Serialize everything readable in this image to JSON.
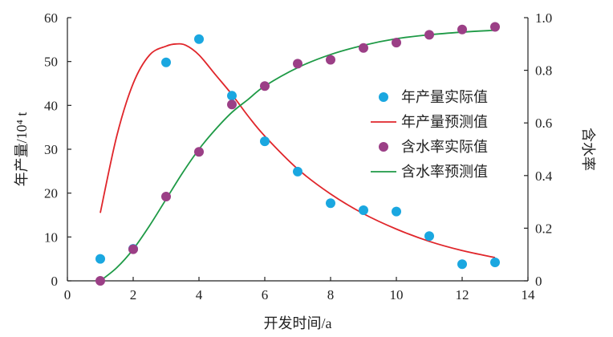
{
  "chart_data": {
    "type": "scatter",
    "xlabel": "开发时间/a",
    "ylabel": "年产量/10⁴ t",
    "y2label": "含水率",
    "xlim": [
      0,
      14
    ],
    "ylim": [
      0,
      60
    ],
    "y2lim": [
      0,
      1.0
    ],
    "xticks": [
      "0",
      "2",
      "4",
      "6",
      "8",
      "10",
      "12",
      "14"
    ],
    "yticks": [
      "0",
      "10",
      "20",
      "30",
      "40",
      "50",
      "60"
    ],
    "y2ticks": [
      "0",
      "0.2",
      "0.4",
      "0.6",
      "0.8",
      "1.0"
    ],
    "grid": false,
    "legend_position": "right",
    "colors": {
      "production_actual": "#1aa7e0",
      "production_pred": "#e0262b",
      "watercut_actual": "#9b3f86",
      "watercut_pred": "#1e9a46"
    },
    "series": [
      {
        "name": "年产量实际值",
        "kind": "points",
        "axis": "left",
        "x": [
          1,
          2,
          3,
          4,
          5,
          6,
          7,
          8,
          9,
          10,
          11,
          12,
          13
        ],
        "y": [
          5.0,
          7.3,
          49.8,
          55.1,
          42.2,
          31.8,
          24.9,
          17.7,
          16.1,
          15.8,
          10.2,
          3.8,
          4.2
        ]
      },
      {
        "name": "年产量预测值",
        "kind": "line",
        "axis": "left",
        "x": [
          1,
          1.5,
          2,
          2.5,
          3,
          3.3,
          3.6,
          4,
          4.5,
          5,
          5.5,
          6,
          7,
          8,
          9,
          10,
          11,
          12,
          13
        ],
        "y": [
          15.5,
          33.0,
          45.0,
          51.5,
          53.5,
          54.0,
          53.7,
          51.5,
          47.0,
          42.5,
          37.5,
          33.0,
          25.5,
          19.8,
          15.3,
          11.8,
          9.0,
          6.9,
          5.3
        ]
      },
      {
        "name": "含水率实际值",
        "kind": "points",
        "axis": "right",
        "x": [
          1,
          2,
          3,
          4,
          5,
          6,
          7,
          8,
          9,
          10,
          11,
          12,
          13
        ],
        "y": [
          0.0,
          0.12,
          0.32,
          0.49,
          0.67,
          0.74,
          0.825,
          0.84,
          0.885,
          0.905,
          0.935,
          0.955,
          0.965
        ]
      },
      {
        "name": "含水率预测值",
        "kind": "line",
        "axis": "right",
        "x": [
          1,
          1.5,
          2,
          2.5,
          3,
          3.5,
          4,
          4.5,
          5,
          5.5,
          6,
          7,
          8,
          9,
          10,
          11,
          12,
          13
        ],
        "y": [
          0.0,
          0.05,
          0.12,
          0.21,
          0.31,
          0.41,
          0.5,
          0.575,
          0.64,
          0.69,
          0.74,
          0.81,
          0.86,
          0.895,
          0.92,
          0.935,
          0.945,
          0.952
        ]
      }
    ]
  }
}
